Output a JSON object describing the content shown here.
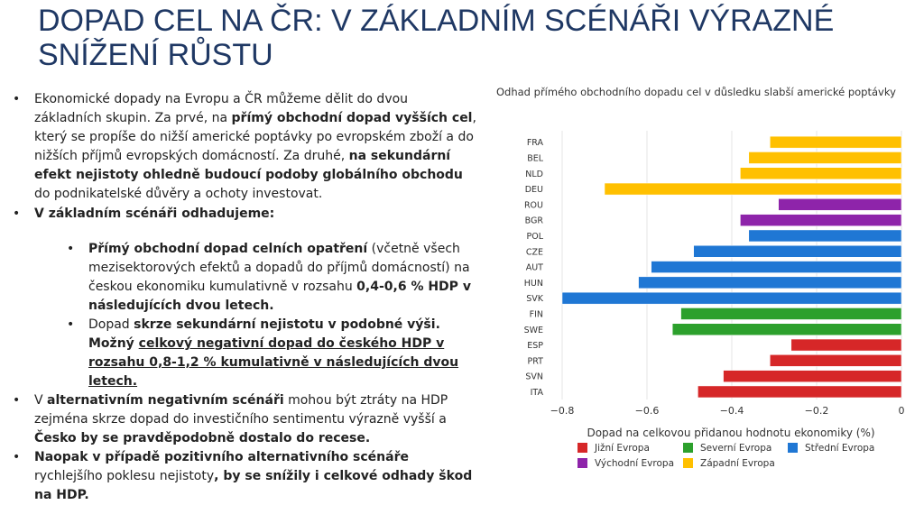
{
  "slide": {
    "title": "DOPAD CEL NA ČR: V ZÁKLADNÍM SCÉNÁŘI VÝRAZNÉ SNÍŽENÍ RŮSTU"
  },
  "text": {
    "b1_p1": "Ekonomické dopady na Evropu a ČR můžeme dělit do dvou základních skupin. Za prvé, na ",
    "b1_s1": "přímý obchodní dopad vyšších cel",
    "b1_p2": ", který se propíše do nižší americké poptávky po evropském zboží a do nižších příjmů evropských domácností. Za druhé, ",
    "b1_s2": "na sekundární efekt nejistoty ohledně budoucí podoby globálního obchodu",
    "b1_p3": " do podnikatelské důvěry a ochoty investovat.",
    "b2_s1": " V základním scénáři odhadujeme:",
    "b3_s1": "Přímý obchodní dopad celních opatření",
    "b3_p1": " (včetně všech mezisektorových efektů a dopadů do příjmů domácností) na českou ekonomiku kumulativně v rozsahu ",
    "b3_s2": "0,4-0,6 % HDP v následujících dvou letech.",
    "b4_p1": "Dopad ",
    "b4_s1": "skrze sekundární nejistotu v podobné výši. Možný ",
    "b4_s2": "celkový negativní dopad do českého HDP v rozsahu 0,8-1,2 % kumulativně v následujících dvou letech.",
    "b5_p1": "V ",
    "b5_s1": "alternativním negativním scénáři",
    "b5_p2": " mohou být ztráty na HDP zejména skrze dopad do investičního sentimentu výrazně vyšší a ",
    "b5_s2": "Česko by se pravděpodobně dostalo do recese.",
    "b6_s1": "Naopak v případě pozitivního alternativního scénáře",
    "b6_p1": " rychlejšího poklesu nejistoty",
    "b6_s2": ", by se snížily i celkové odhady škod na HDP."
  },
  "chart_data": {
    "type": "bar",
    "orientation": "horizontal",
    "title": "Odhad přímého obchodního dopadu cel v důsledku slabší americké poptávky",
    "xlabel": "Dopad na celkovou přidanou hodnotu ekonomiky (%)",
    "ylabel": "",
    "xlim": [
      -0.8,
      0
    ],
    "xticks": [
      -0.8,
      -0.6,
      -0.4,
      -0.2,
      0
    ],
    "xtick_labels": [
      "−0.8",
      "−0.6",
      "−0.4",
      "−0.2",
      "0"
    ],
    "grid": "vertical",
    "categories": [
      "FRA",
      "BEL",
      "NLD",
      "DEU",
      "ROU",
      "BGR",
      "POL",
      "CZE",
      "AUT",
      "HUN",
      "SVK",
      "FIN",
      "SWE",
      "ESP",
      "PRT",
      "SVN",
      "ITA"
    ],
    "values": [
      -0.31,
      -0.36,
      -0.38,
      -0.7,
      -0.29,
      -0.38,
      -0.36,
      -0.49,
      -0.59,
      -0.62,
      -0.8,
      -0.52,
      -0.54,
      -0.26,
      -0.31,
      -0.42,
      -0.48
    ],
    "groups": [
      "Západní Evropa",
      "Západní Evropa",
      "Západní Evropa",
      "Západní Evropa",
      "Východní Evropa",
      "Východní Evropa",
      "Střední Evropa",
      "Střední Evropa",
      "Střední Evropa",
      "Střední Evropa",
      "Střední Evropa",
      "Severní Evropa",
      "Severní Evropa",
      "Jižní Evropa",
      "Jižní Evropa",
      "Jižní Evropa",
      "Jižní Evropa"
    ],
    "legend": [
      {
        "name": "Jižní Evropa",
        "color": "#d62728"
      },
      {
        "name": "Severní Evropa",
        "color": "#2ca02c"
      },
      {
        "name": "Střední Evropa",
        "color": "#1f77d4"
      },
      {
        "name": "Východní Evropa",
        "color": "#8e24aa"
      },
      {
        "name": "Západní Evropa",
        "color": "#ffc000"
      }
    ],
    "legend_position": "bottom"
  },
  "colors": {
    "title": "#1f3864",
    "bar_outline": "#ffffff",
    "grid": "#e6e6e6"
  }
}
